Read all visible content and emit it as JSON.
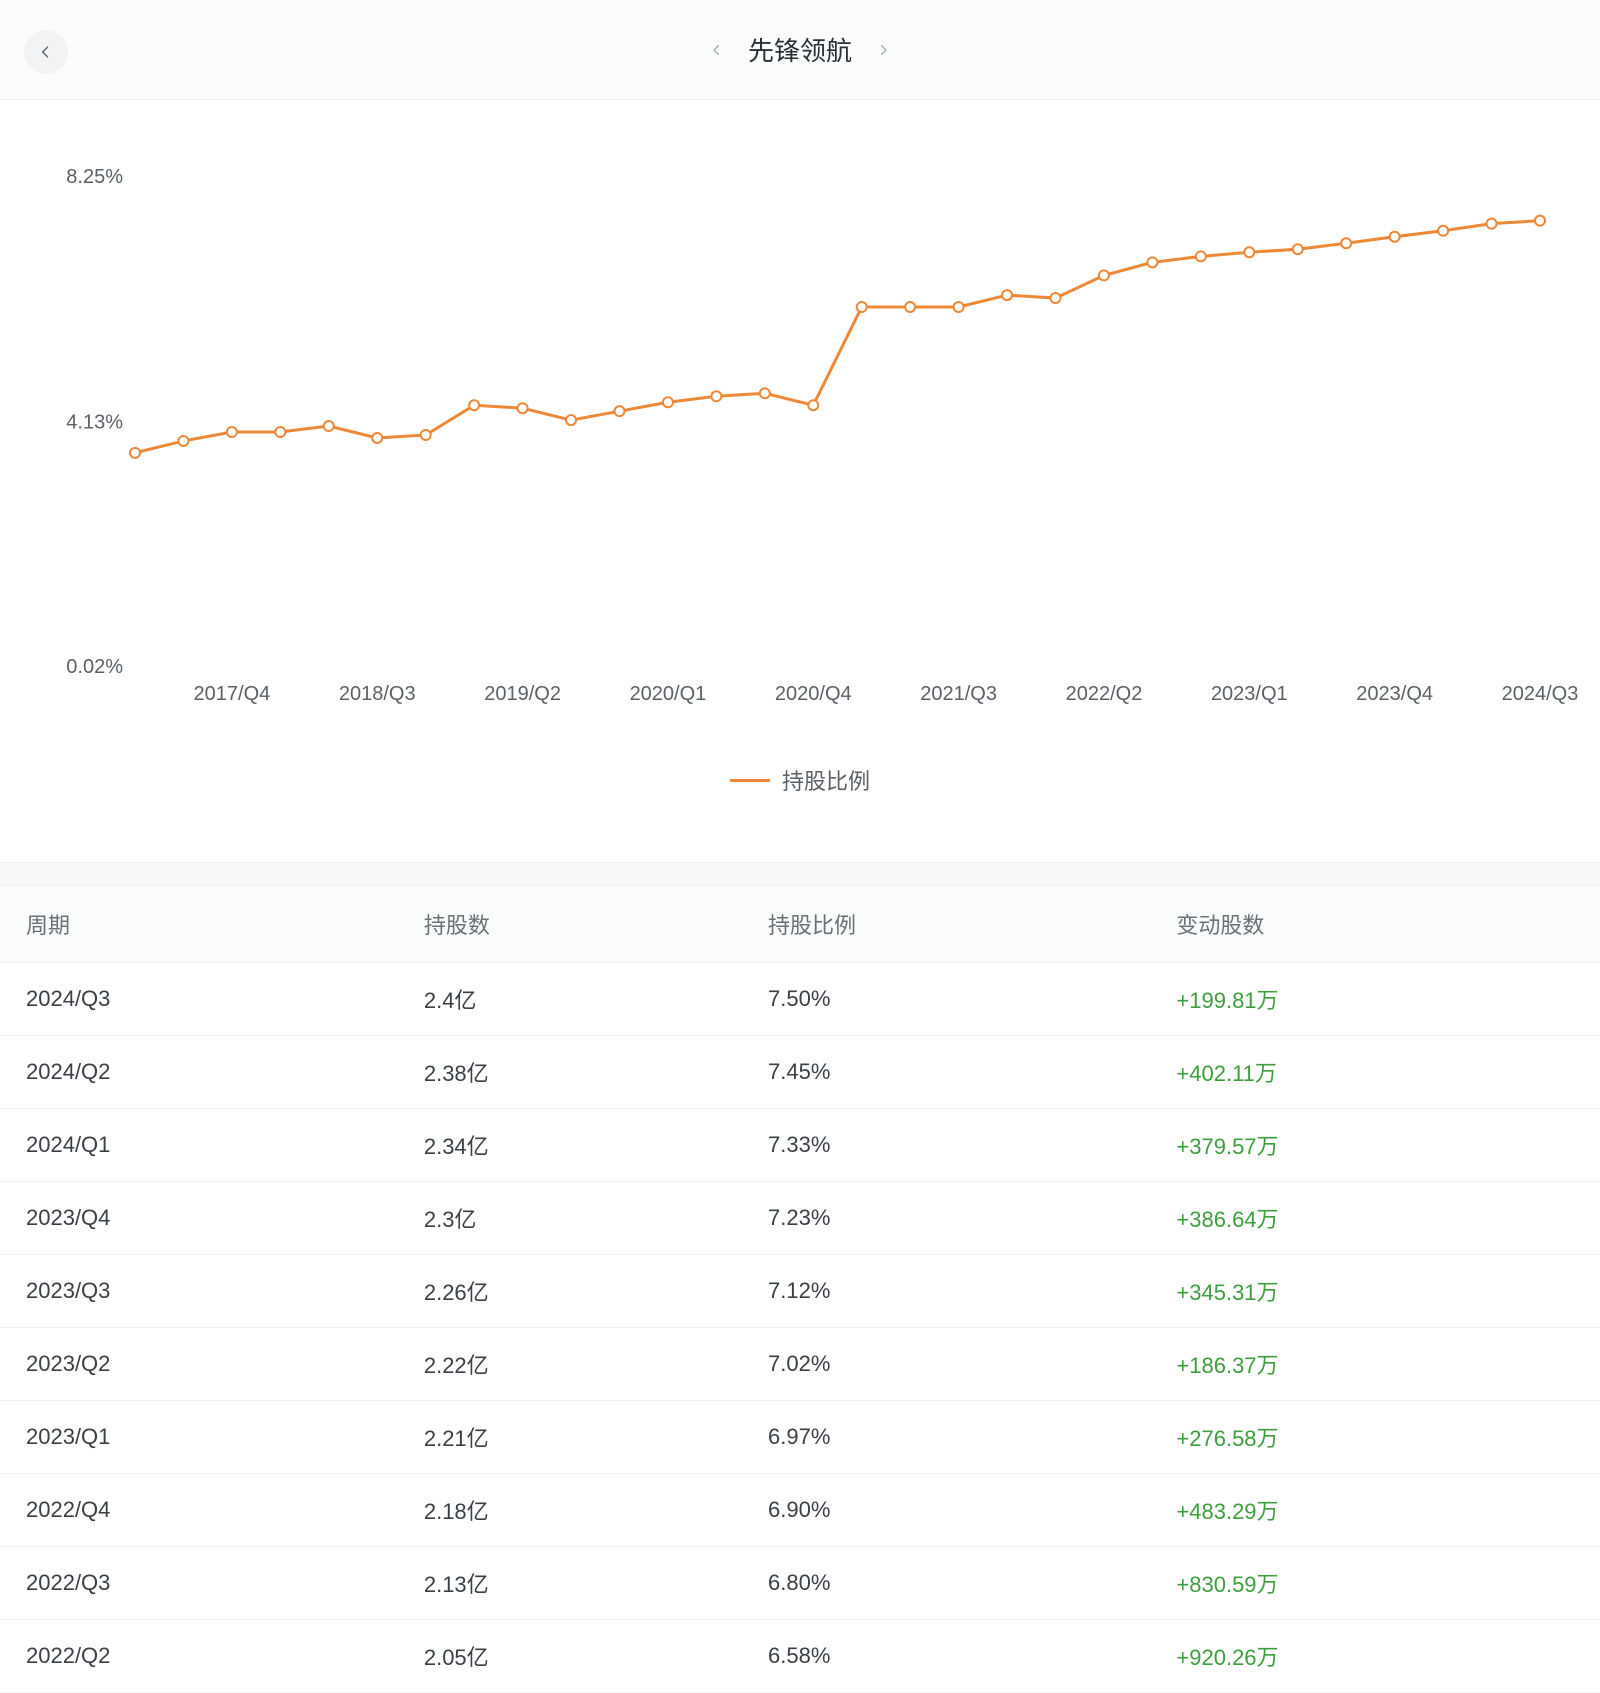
{
  "header": {
    "title": "先锋领航"
  },
  "chart": {
    "type": "line",
    "legend_label": "持股比例",
    "line_color": "#ed8936",
    "marker_fill": "#ffffff",
    "marker_radius": 5,
    "line_width": 3,
    "background_color": "#ffffff",
    "ylabel_color": "#5b6067",
    "xlabel_color": "#5b6067",
    "font_size_axis": 20,
    "ymin": 0.02,
    "ymax": 8.25,
    "ymid": 4.13,
    "y_ticks": [
      "8.25%",
      "4.13%",
      "0.02%"
    ],
    "x_ticks": [
      "2017/Q4",
      "2018/Q3",
      "2019/Q2",
      "2020/Q1",
      "2020/Q4",
      "2021/Q3",
      "2022/Q2",
      "2023/Q1",
      "2023/Q4",
      "2024/Q3"
    ],
    "series": [
      {
        "x": "2017/Q2",
        "y": 3.6
      },
      {
        "x": "2017/Q3",
        "y": 3.8
      },
      {
        "x": "2017/Q4",
        "y": 3.95
      },
      {
        "x": "2018/Q1",
        "y": 3.95
      },
      {
        "x": "2018/Q2",
        "y": 4.05
      },
      {
        "x": "2018/Q3",
        "y": 3.85
      },
      {
        "x": "2018/Q4",
        "y": 3.9
      },
      {
        "x": "2019/Q1",
        "y": 4.4
      },
      {
        "x": "2019/Q2",
        "y": 4.35
      },
      {
        "x": "2019/Q3",
        "y": 4.15
      },
      {
        "x": "2019/Q4",
        "y": 4.3
      },
      {
        "x": "2020/Q1",
        "y": 4.45
      },
      {
        "x": "2020/Q2",
        "y": 4.55
      },
      {
        "x": "2020/Q3",
        "y": 4.6
      },
      {
        "x": "2020/Q4",
        "y": 4.4
      },
      {
        "x": "2021/Q1",
        "y": 6.05
      },
      {
        "x": "2021/Q2",
        "y": 6.05
      },
      {
        "x": "2021/Q3",
        "y": 6.05
      },
      {
        "x": "2021/Q4",
        "y": 6.25
      },
      {
        "x": "2022/Q1",
        "y": 6.2
      },
      {
        "x": "2022/Q2",
        "y": 6.58
      },
      {
        "x": "2022/Q3",
        "y": 6.8
      },
      {
        "x": "2022/Q4",
        "y": 6.9
      },
      {
        "x": "2023/Q1",
        "y": 6.97
      },
      {
        "x": "2023/Q2",
        "y": 7.02
      },
      {
        "x": "2023/Q3",
        "y": 7.12
      },
      {
        "x": "2023/Q4",
        "y": 7.23
      },
      {
        "x": "2024/Q1",
        "y": 7.33
      },
      {
        "x": "2024/Q2",
        "y": 7.45
      },
      {
        "x": "2024/Q3",
        "y": 7.5
      }
    ]
  },
  "table": {
    "columns": [
      "周期",
      "持股数",
      "持股比例",
      "变动股数"
    ],
    "change_positive_color": "#3c9f3c",
    "rows": [
      {
        "period": "2024/Q3",
        "shares": "2.4亿",
        "ratio": "7.50%",
        "change": "+199.81万",
        "change_sign": "+"
      },
      {
        "period": "2024/Q2",
        "shares": "2.38亿",
        "ratio": "7.45%",
        "change": "+402.11万",
        "change_sign": "+"
      },
      {
        "period": "2024/Q1",
        "shares": "2.34亿",
        "ratio": "7.33%",
        "change": "+379.57万",
        "change_sign": "+"
      },
      {
        "period": "2023/Q4",
        "shares": "2.3亿",
        "ratio": "7.23%",
        "change": "+386.64万",
        "change_sign": "+"
      },
      {
        "period": "2023/Q3",
        "shares": "2.26亿",
        "ratio": "7.12%",
        "change": "+345.31万",
        "change_sign": "+"
      },
      {
        "period": "2023/Q2",
        "shares": "2.22亿",
        "ratio": "7.02%",
        "change": "+186.37万",
        "change_sign": "+"
      },
      {
        "period": "2023/Q1",
        "shares": "2.21亿",
        "ratio": "6.97%",
        "change": "+276.58万",
        "change_sign": "+"
      },
      {
        "period": "2022/Q4",
        "shares": "2.18亿",
        "ratio": "6.90%",
        "change": "+483.29万",
        "change_sign": "+"
      },
      {
        "period": "2022/Q3",
        "shares": "2.13亿",
        "ratio": "6.80%",
        "change": "+830.59万",
        "change_sign": "+"
      },
      {
        "period": "2022/Q2",
        "shares": "2.05亿",
        "ratio": "6.58%",
        "change": "+920.26万",
        "change_sign": "+"
      }
    ]
  }
}
